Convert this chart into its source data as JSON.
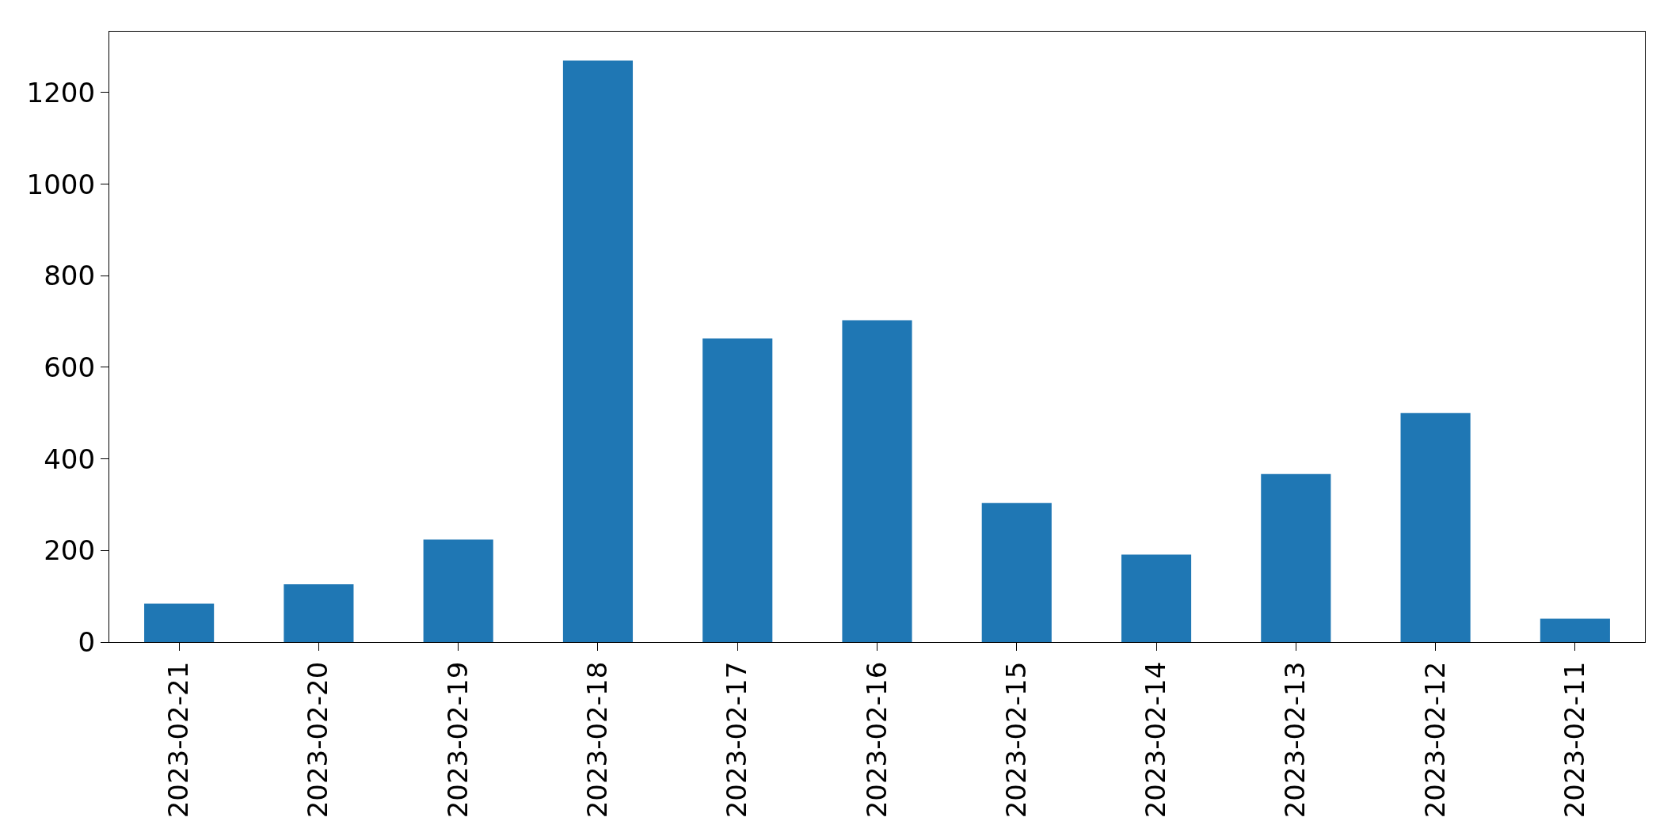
{
  "chart_data": {
    "type": "bar",
    "categories": [
      "2023-02-21",
      "2023-02-20",
      "2023-02-19",
      "2023-02-18",
      "2023-02-17",
      "2023-02-16",
      "2023-02-15",
      "2023-02-14",
      "2023-02-13",
      "2023-02-12",
      "2023-02-11"
    ],
    "values": [
      84,
      126,
      224,
      1270,
      663,
      703,
      304,
      191,
      367,
      500,
      51
    ],
    "color": "#1f77b4",
    "ylim": [
      0,
      1333
    ],
    "yticks": [
      0,
      200,
      400,
      600,
      800,
      1000,
      1200
    ]
  }
}
